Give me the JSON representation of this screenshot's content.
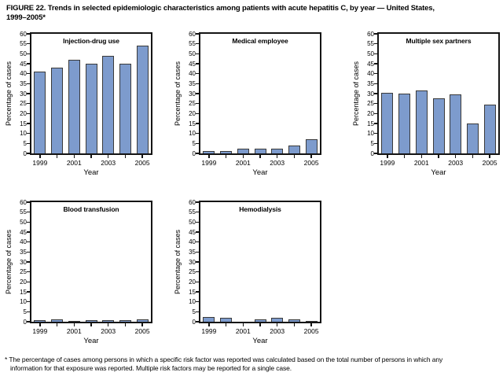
{
  "header": {
    "title_line1": "FIGURE 22. Trends in selected epidemiologic characteristics among patients with acute hepatitis C, by year — United States,",
    "title_line2": "1999–2005*"
  },
  "footnote": {
    "line1": "* The percentage of cases among persons in which a specific risk factor was reported was calculated based on the total number of persons in which any",
    "line2": "information for that exposure was reported. Multiple risk factors may be reported for a single case."
  },
  "colors": {
    "bar_fill": "#7d9bcd",
    "bar_border": "#3a3a3a",
    "axis": "#141414",
    "background": "#ffffff",
    "text": "#000000"
  },
  "chart_data": [
    {
      "type": "bar",
      "title": "Injection-drug use",
      "xlabel": "Year",
      "ylabel": "Percentage of cases",
      "ylim": [
        0,
        60
      ],
      "ytick_step": 5,
      "grid": false,
      "legend": "none",
      "categories": [
        "1999",
        "2000",
        "2001",
        "2002",
        "2003",
        "2004",
        "2005"
      ],
      "labeled_xticks": [
        "1999",
        "2001",
        "2003",
        "2005"
      ],
      "values": [
        41,
        43,
        47,
        45,
        49,
        45,
        54
      ]
    },
    {
      "type": "bar",
      "title": "Medical employee",
      "xlabel": "Year",
      "ylabel": "Percentage of cases",
      "ylim": [
        0,
        60
      ],
      "ytick_step": 5,
      "grid": false,
      "legend": "none",
      "categories": [
        "1999",
        "2000",
        "2001",
        "2002",
        "2003",
        "2004",
        "2005"
      ],
      "labeled_xticks": [
        "1999",
        "2001",
        "2003",
        "2005"
      ],
      "values": [
        1,
        1,
        2.5,
        2.5,
        2.5,
        4,
        7
      ]
    },
    {
      "type": "bar",
      "title": "Multiple sex partners",
      "xlabel": "Year",
      "ylabel": "Percentage of cases",
      "ylim": [
        0,
        60
      ],
      "ytick_step": 5,
      "grid": false,
      "legend": "none",
      "categories": [
        "1999",
        "2000",
        "2001",
        "2002",
        "2003",
        "2004",
        "2005"
      ],
      "labeled_xticks": [
        "1999",
        "2001",
        "2003",
        "2005"
      ],
      "values": [
        30.5,
        30,
        31.5,
        27.5,
        29.5,
        15,
        24.5
      ]
    },
    {
      "type": "bar",
      "title": "Blood transfusion",
      "xlabel": "Year",
      "ylabel": "Percentage of cases",
      "ylim": [
        0,
        60
      ],
      "ytick_step": 5,
      "grid": false,
      "legend": "none",
      "categories": [
        "1999",
        "2000",
        "2001",
        "2002",
        "2003",
        "2004",
        "2005"
      ],
      "labeled_xticks": [
        "1999",
        "2001",
        "2003",
        "2005"
      ],
      "values": [
        0.8,
        1,
        0.3,
        0.6,
        0.8,
        0.6,
        1
      ]
    },
    {
      "type": "bar",
      "title": "Hemodialysis",
      "xlabel": "Year",
      "ylabel": "Percentage of cases",
      "ylim": [
        0,
        60
      ],
      "ytick_step": 5,
      "grid": false,
      "legend": "none",
      "categories": [
        "1999",
        "2000",
        "2001",
        "2002",
        "2003",
        "2004",
        "2005"
      ],
      "labeled_xticks": [
        "1999",
        "2001",
        "2003",
        "2005"
      ],
      "values": [
        2.5,
        2,
        0,
        1,
        2,
        1.2,
        0.4
      ]
    }
  ]
}
